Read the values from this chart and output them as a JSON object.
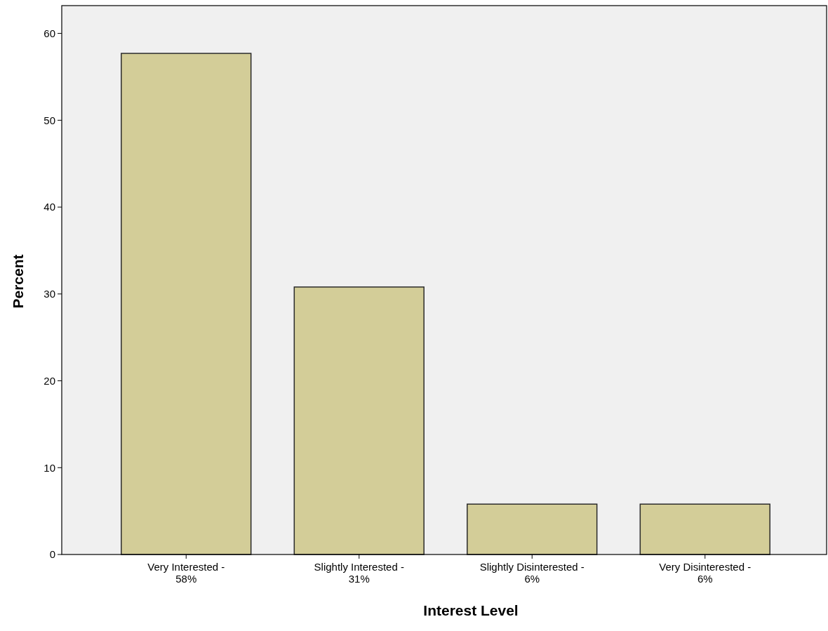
{
  "chart_data": {
    "type": "bar",
    "xlabel": "Interest Level",
    "ylabel": "Percent",
    "categories": [
      "Very Interested -\n58%",
      "Slightly Interested -\n31%",
      "Slightly Disinterested -\n6%",
      "Very Disinterested -\n6%"
    ],
    "values": [
      57.7,
      30.8,
      5.8,
      5.8
    ],
    "color": "#d3cd98",
    "ylim": [
      0,
      63.2
    ],
    "yticks": [
      0,
      10,
      20,
      30,
      40,
      50,
      60
    ],
    "grid": false
  }
}
